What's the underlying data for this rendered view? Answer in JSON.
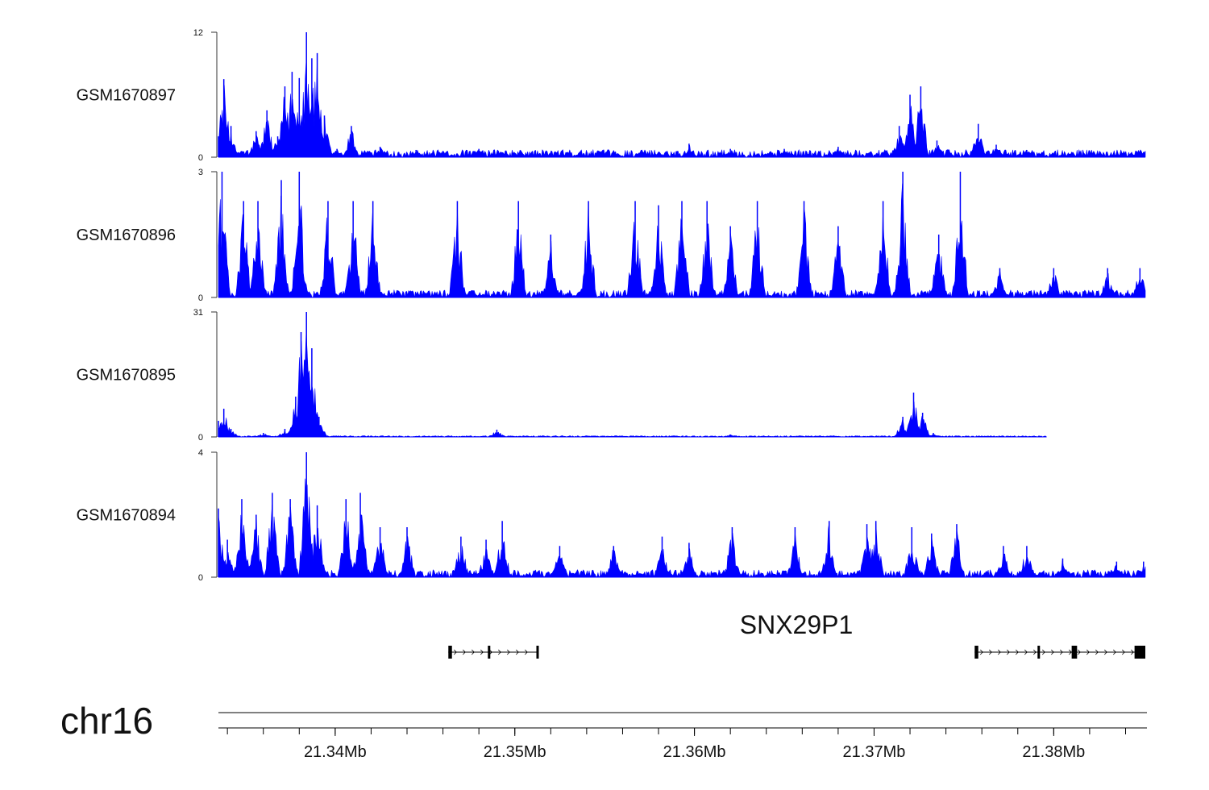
{
  "chart_data": {
    "type": "area",
    "color": "#0000ff",
    "xlim": [
      21.3335,
      21.3851
    ],
    "x_unit": "Mb",
    "tracks": [
      {
        "name": "GSM1670897",
        "ymax": 12,
        "yticks": [
          0,
          12
        ],
        "peaks": [
          [
            21.3335,
            2.0
          ],
          [
            21.3338,
            7.5
          ],
          [
            21.3342,
            3.0
          ],
          [
            21.3348,
            0.6
          ],
          [
            21.3356,
            2.5
          ],
          [
            21.3362,
            4.5
          ],
          [
            21.3368,
            2.0
          ],
          [
            21.3372,
            6.8
          ],
          [
            21.3376,
            8.2
          ],
          [
            21.338,
            7.6
          ],
          [
            21.3384,
            12.0
          ],
          [
            21.3387,
            9.5
          ],
          [
            21.339,
            10.0
          ],
          [
            21.3394,
            4.0
          ],
          [
            21.3401,
            0.8
          ],
          [
            21.3409,
            3.0
          ],
          [
            21.3418,
            0.6
          ],
          [
            21.3425,
            1.0
          ],
          [
            21.3445,
            0.7
          ],
          [
            21.346,
            0.6
          ],
          [
            21.348,
            0.8
          ],
          [
            21.3492,
            0.5
          ],
          [
            21.3525,
            0.2
          ],
          [
            21.358,
            0.5
          ],
          [
            21.3597,
            1.3
          ],
          [
            21.362,
            0.8
          ],
          [
            21.365,
            0.8
          ],
          [
            21.368,
            1.0
          ],
          [
            21.3714,
            3.0
          ],
          [
            21.372,
            6.0
          ],
          [
            21.3726,
            6.8
          ],
          [
            21.3735,
            1.6
          ],
          [
            21.3758,
            3.2
          ],
          [
            21.3768,
            1.2
          ],
          [
            21.3785,
            0.7
          ],
          [
            21.381,
            0.5
          ],
          [
            21.3835,
            0.3
          ],
          [
            21.385,
            0.5
          ]
        ]
      },
      {
        "name": "GSM1670896",
        "ymax": 3,
        "yticks": [
          0,
          3
        ],
        "peaks": [
          [
            21.3337,
            3.0
          ],
          [
            21.3349,
            2.3
          ],
          [
            21.3357,
            2.3
          ],
          [
            21.337,
            2.8
          ],
          [
            21.338,
            3.0
          ],
          [
            21.3396,
            2.3
          ],
          [
            21.341,
            2.3
          ],
          [
            21.3421,
            2.3
          ],
          [
            21.3468,
            2.3
          ],
          [
            21.3502,
            2.3
          ],
          [
            21.352,
            1.5
          ],
          [
            21.3541,
            2.3
          ],
          [
            21.3567,
            2.3
          ],
          [
            21.358,
            2.2
          ],
          [
            21.3593,
            2.3
          ],
          [
            21.3607,
            2.3
          ],
          [
            21.362,
            1.7
          ],
          [
            21.3635,
            2.3
          ],
          [
            21.3661,
            2.3
          ],
          [
            21.368,
            1.7
          ],
          [
            21.3705,
            2.3
          ],
          [
            21.3716,
            3.0
          ],
          [
            21.3736,
            1.5
          ],
          [
            21.3748,
            3.0
          ],
          [
            21.377,
            0.7
          ],
          [
            21.38,
            0.7
          ],
          [
            21.383,
            0.7
          ],
          [
            21.3848,
            0.7
          ]
        ]
      },
      {
        "name": "GSM1670895",
        "ymax": 31,
        "yticks": [
          0,
          31
        ],
        "xmax_data": 21.3796,
        "peaks": [
          [
            21.3335,
            4.0
          ],
          [
            21.3338,
            7.0
          ],
          [
            21.3342,
            2.0
          ],
          [
            21.336,
            1.0
          ],
          [
            21.3372,
            2.0
          ],
          [
            21.3378,
            10.0
          ],
          [
            21.3381,
            26.0
          ],
          [
            21.3384,
            31.0
          ],
          [
            21.3387,
            22.0
          ],
          [
            21.3391,
            5.0
          ],
          [
            21.34,
            0.3
          ],
          [
            21.349,
            1.8
          ],
          [
            21.356,
            0.3
          ],
          [
            21.362,
            0.6
          ],
          [
            21.367,
            0.3
          ],
          [
            21.3716,
            5.0
          ],
          [
            21.3722,
            11.0
          ],
          [
            21.3727,
            6.0
          ],
          [
            21.3733,
            1.0
          ],
          [
            21.376,
            0.3
          ],
          [
            21.379,
            0.2
          ]
        ]
      },
      {
        "name": "GSM1670894",
        "ymax": 4,
        "yticks": [
          0,
          4
        ],
        "peaks": [
          [
            21.3335,
            2.2
          ],
          [
            21.334,
            1.2
          ],
          [
            21.3348,
            2.5
          ],
          [
            21.3356,
            2.0
          ],
          [
            21.3365,
            2.7
          ],
          [
            21.3375,
            2.5
          ],
          [
            21.3384,
            4.0
          ],
          [
            21.339,
            2.3
          ],
          [
            21.3406,
            2.5
          ],
          [
            21.3414,
            2.7
          ],
          [
            21.3425,
            1.6
          ],
          [
            21.344,
            1.6
          ],
          [
            21.347,
            1.3
          ],
          [
            21.3484,
            1.2
          ],
          [
            21.3493,
            1.8
          ],
          [
            21.3525,
            1.0
          ],
          [
            21.3555,
            1.0
          ],
          [
            21.3582,
            1.3
          ],
          [
            21.3597,
            1.1
          ],
          [
            21.3621,
            1.6
          ],
          [
            21.3656,
            1.6
          ],
          [
            21.3675,
            1.8
          ],
          [
            21.3696,
            1.7
          ],
          [
            21.3701,
            1.8
          ],
          [
            21.3721,
            1.6
          ],
          [
            21.3732,
            1.4
          ],
          [
            21.3746,
            1.7
          ],
          [
            21.3772,
            1.0
          ],
          [
            21.3785,
            1.0
          ],
          [
            21.3805,
            0.6
          ],
          [
            21.3835,
            0.5
          ],
          [
            21.385,
            0.5
          ]
        ]
      }
    ],
    "gene": {
      "name": "SNX29P1",
      "transcripts": [
        {
          "start": 21.3463,
          "end": 21.3513,
          "exons": [
            [
              21.3463,
              21.3465
            ],
            [
              21.3485,
              21.3486
            ],
            [
              21.3512,
              21.3513
            ]
          ]
        },
        {
          "start": 21.3756,
          "end": 21.3851,
          "exons": [
            [
              21.3756,
              21.3758
            ],
            [
              21.3791,
              21.3792
            ],
            [
              21.381,
              21.3813
            ],
            [
              21.3845,
              21.3851
            ]
          ]
        }
      ]
    },
    "chromosome": "chr16",
    "xticks": [
      21.34,
      21.35,
      21.36,
      21.37,
      21.38
    ],
    "xtick_labels": [
      "21.34Mb",
      "21.35Mb",
      "21.36Mb",
      "21.37Mb",
      "21.38Mb"
    ]
  }
}
